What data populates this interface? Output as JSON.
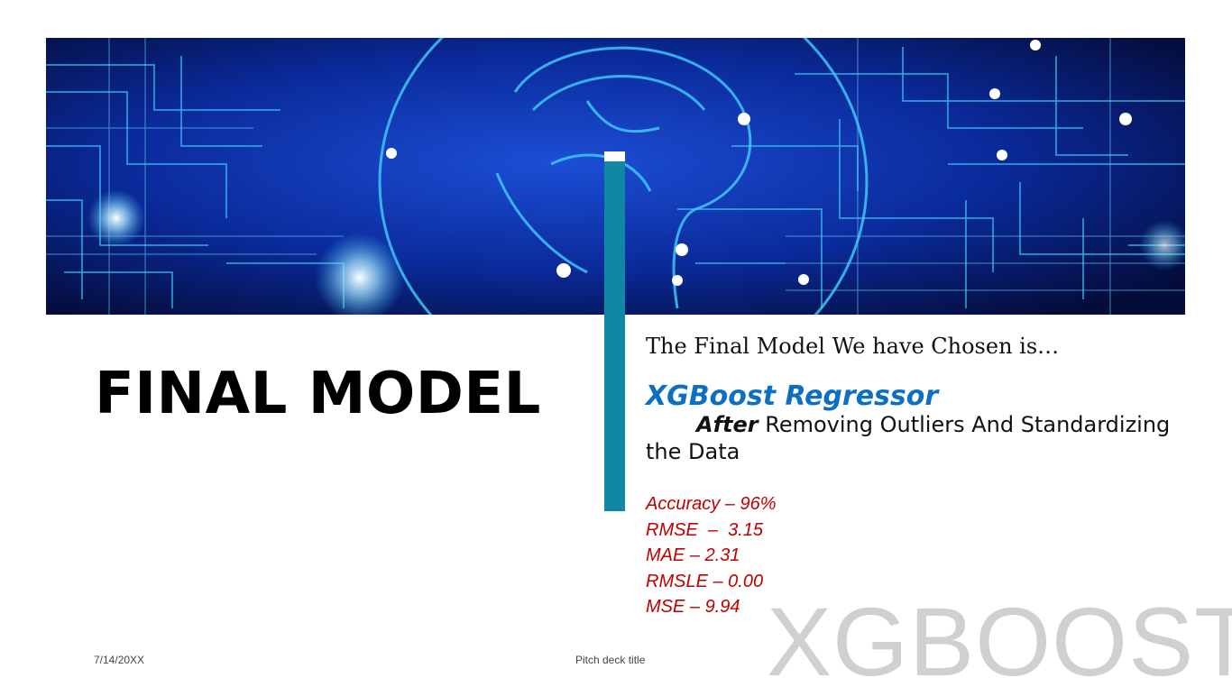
{
  "slide": {
    "title": "FINAL MODEL",
    "subtitle": "The Final Model We have Chosen is…",
    "model_name": "XGBoost Regressor",
    "note_bold": "After",
    "note_line1_rest": " Removing Outliers And Standardizing",
    "note_line2": "the Data",
    "metrics": [
      "Accuracy – 96%",
      "RMSE  –  3.15",
      "MAE – 2.31",
      "RMSLE – 0.00",
      "MSE – 9.94"
    ],
    "watermark": "XGBOOST",
    "footer_date": "7/14/20XX",
    "footer_title": "Pitch deck title"
  },
  "colors": {
    "accent_bar": "#0f89a3",
    "model_name": "#0d6fc1",
    "metrics": "#c00000",
    "banner_bg": "#05124d",
    "banner_lines": "#2fb6f0"
  },
  "banner_image": "circuit-brain-image"
}
